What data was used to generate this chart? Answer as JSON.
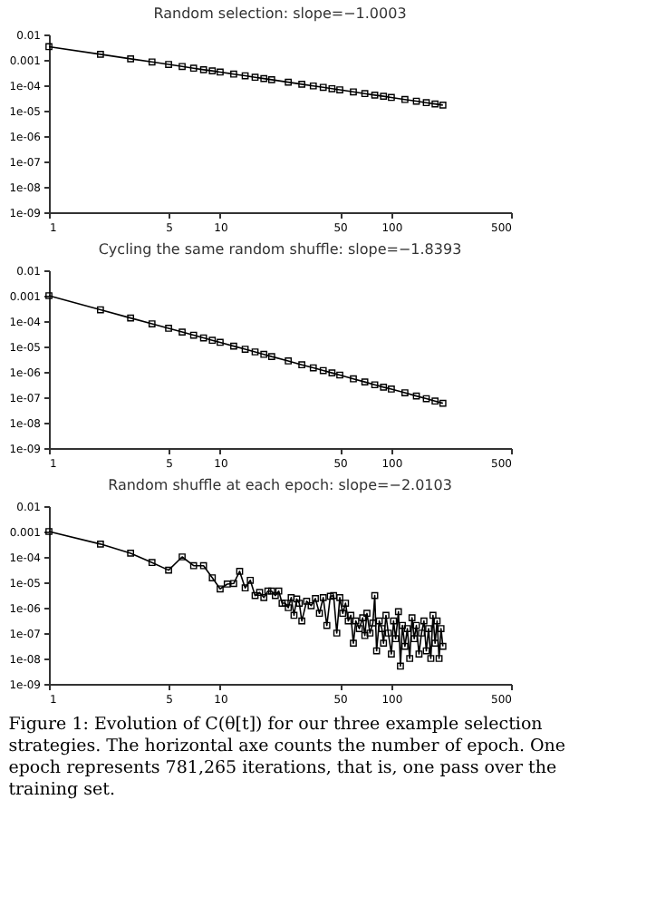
{
  "chart_data": [
    {
      "type": "line",
      "title": "Random selection: slope=−1.0003",
      "marker": "square",
      "line_style": "solid",
      "log": "xy",
      "grid": false,
      "xlim": [
        1,
        500
      ],
      "ylim": [
        1e-09,
        0.01
      ],
      "xticks": [
        1,
        5,
        10,
        50,
        100,
        500
      ],
      "yticks": [
        0.01,
        0.001,
        {
          "value": 0.0001,
          "label": "1e-04"
        },
        {
          "value": 1e-05,
          "label": "1e-05"
        },
        {
          "value": 1e-06,
          "label": "1e-06"
        },
        {
          "value": 1e-07,
          "label": "1e-07"
        },
        {
          "value": 1e-08,
          "label": "1e-08"
        },
        {
          "value": 1e-09,
          "label": "1e-09"
        }
      ],
      "x": [
        1,
        2,
        3,
        4,
        5,
        6,
        7,
        8,
        9,
        10,
        12,
        14,
        16,
        18,
        20,
        25,
        30,
        35,
        40,
        45,
        50,
        60,
        70,
        80,
        90,
        100,
        120,
        140,
        160,
        180,
        200
      ],
      "series": [
        {
          "color": "#000000",
          "values": [
            0.0033,
            0.00165,
            0.0011,
            0.00083,
            0.00066,
            0.00055,
            0.00047,
            0.00041,
            0.00037,
            0.00033,
            0.000275,
            0.000236,
            0.000206,
            0.000183,
            0.000165,
            0.000132,
            0.00011,
            9.4e-05,
            8.3e-05,
            7.3e-05,
            6.6e-05,
            5.5e-05,
            4.7e-05,
            4.1e-05,
            3.7e-05,
            3.3e-05,
            2.75e-05,
            2.36e-05,
            2.06e-05,
            1.83e-05,
            1.65e-05
          ]
        }
      ]
    },
    {
      "type": "line",
      "title": "Cycling the same random shuffle: slope=−1.8393",
      "marker": "square",
      "line_style": "solid",
      "log": "xy",
      "grid": false,
      "xlim": [
        1,
        500
      ],
      "ylim": [
        1e-09,
        0.01
      ],
      "xticks": [
        1,
        5,
        10,
        50,
        100,
        500
      ],
      "yticks": [
        0.01,
        0.001,
        {
          "value": 0.0001,
          "label": "1e-04"
        },
        {
          "value": 1e-05,
          "label": "1e-05"
        },
        {
          "value": 1e-06,
          "label": "1e-06"
        },
        {
          "value": 1e-07,
          "label": "1e-07"
        },
        {
          "value": 1e-08,
          "label": "1e-08"
        },
        {
          "value": 1e-09,
          "label": "1e-09"
        }
      ],
      "x": [
        1,
        2,
        3,
        4,
        5,
        6,
        7,
        8,
        9,
        10,
        12,
        14,
        16,
        18,
        20,
        25,
        30,
        35,
        40,
        45,
        50,
        60,
        70,
        80,
        90,
        100,
        120,
        140,
        160,
        180,
        200
      ],
      "series": [
        {
          "color": "#000000",
          "values": [
            0.001,
            0.000279,
            0.000132,
            7.8e-05,
            5.2e-05,
            3.7e-05,
            2.79e-05,
            2.18e-05,
            1.75e-05,
            1.45e-05,
            1.03e-05,
            7.8e-06,
            6.1e-06,
            4.9e-06,
            4e-06,
            2.7e-06,
            1.9e-06,
            1.44e-06,
            1.13e-06,
            9.1e-07,
            7.5e-07,
            5.3e-07,
            4e-07,
            3.1e-07,
            2.5e-07,
            2.1e-07,
            1.5e-07,
            1.12e-07,
            8.8e-08,
            7.1e-08,
            5.8e-08
          ]
        }
      ]
    },
    {
      "type": "line",
      "title": "Random shuffle at each epoch: slope=−2.0103",
      "marker": "square",
      "line_style": "solid",
      "log": "xy",
      "grid": false,
      "xlim": [
        1,
        500
      ],
      "ylim": [
        1e-09,
        0.01
      ],
      "xticks": [
        1,
        5,
        10,
        50,
        100,
        500
      ],
      "yticks": [
        0.01,
        0.001,
        {
          "value": 0.0001,
          "label": "1e-04"
        },
        {
          "value": 1e-05,
          "label": "1e-05"
        },
        {
          "value": 1e-06,
          "label": "1e-06"
        },
        {
          "value": 1e-07,
          "label": "1e-07"
        },
        {
          "value": 1e-08,
          "label": "1e-08"
        },
        {
          "value": 1e-09,
          "label": "1e-09"
        }
      ],
      "x": [
        1,
        2,
        3,
        4,
        5,
        6,
        7,
        8,
        9,
        10,
        11,
        12,
        13,
        14,
        15,
        16,
        17,
        18,
        19,
        20,
        21,
        22,
        23,
        24,
        25,
        26,
        27,
        28,
        29,
        30,
        32,
        34,
        36,
        38,
        40,
        42,
        44,
        46,
        48,
        50,
        52,
        54,
        56,
        58,
        60,
        62,
        65,
        68,
        70,
        72,
        75,
        78,
        80,
        82,
        85,
        88,
        90,
        93,
        96,
        100,
        103,
        106,
        110,
        113,
        116,
        120,
        124,
        128,
        132,
        136,
        140,
        145,
        150,
        155,
        160,
        165,
        170,
        175,
        180,
        185,
        190,
        195,
        200
      ],
      "series": [
        {
          "color": "#000000",
          "values": [
            0.001,
            0.00032,
            0.00014,
            6e-05,
            3e-05,
            0.0001,
            4.5e-05,
            4.5e-05,
            1.5e-05,
            5.5e-06,
            8.5e-06,
            9e-06,
            2.7e-05,
            6e-06,
            1.2e-05,
            3e-06,
            4e-06,
            2.5e-06,
            4.5e-06,
            4.5e-06,
            3e-06,
            4.5e-06,
            1.5e-06,
            1.5e-06,
            1e-06,
            2.5e-06,
            5e-07,
            2.2e-06,
            1.5e-06,
            3e-07,
            1.8e-06,
            1.2e-06,
            2.3e-06,
            6e-07,
            2.5e-06,
            2e-07,
            2.8e-06,
            3e-06,
            1e-07,
            2.5e-06,
            6e-07,
            1.5e-06,
            3e-07,
            5e-07,
            4e-08,
            3e-07,
            1.5e-07,
            4e-07,
            8e-08,
            6e-07,
            1e-07,
            2.5e-07,
            3e-06,
            2e-08,
            3e-07,
            1.5e-07,
            4e-08,
            5e-07,
            1e-07,
            1.5e-08,
            3e-07,
            6e-08,
            7e-07,
            5e-09,
            2e-07,
            3e-08,
            1.5e-07,
            1e-08,
            4e-07,
            6e-08,
            2e-07,
            1.5e-08,
            1e-07,
            3e-07,
            2e-08,
            1.5e-07,
            1e-08,
            5e-07,
            4e-08,
            3e-07,
            1e-08,
            1.5e-07,
            3e-08
          ]
        }
      ],
      "annotations": [
        "Figure 1: Evolution of C(θ[t]) for our three example selection strategies. The horizontal axe counts the number of epoch. One epoch represents 781,265 iterations, that is, one pass over the training set."
      ]
    }
  ]
}
